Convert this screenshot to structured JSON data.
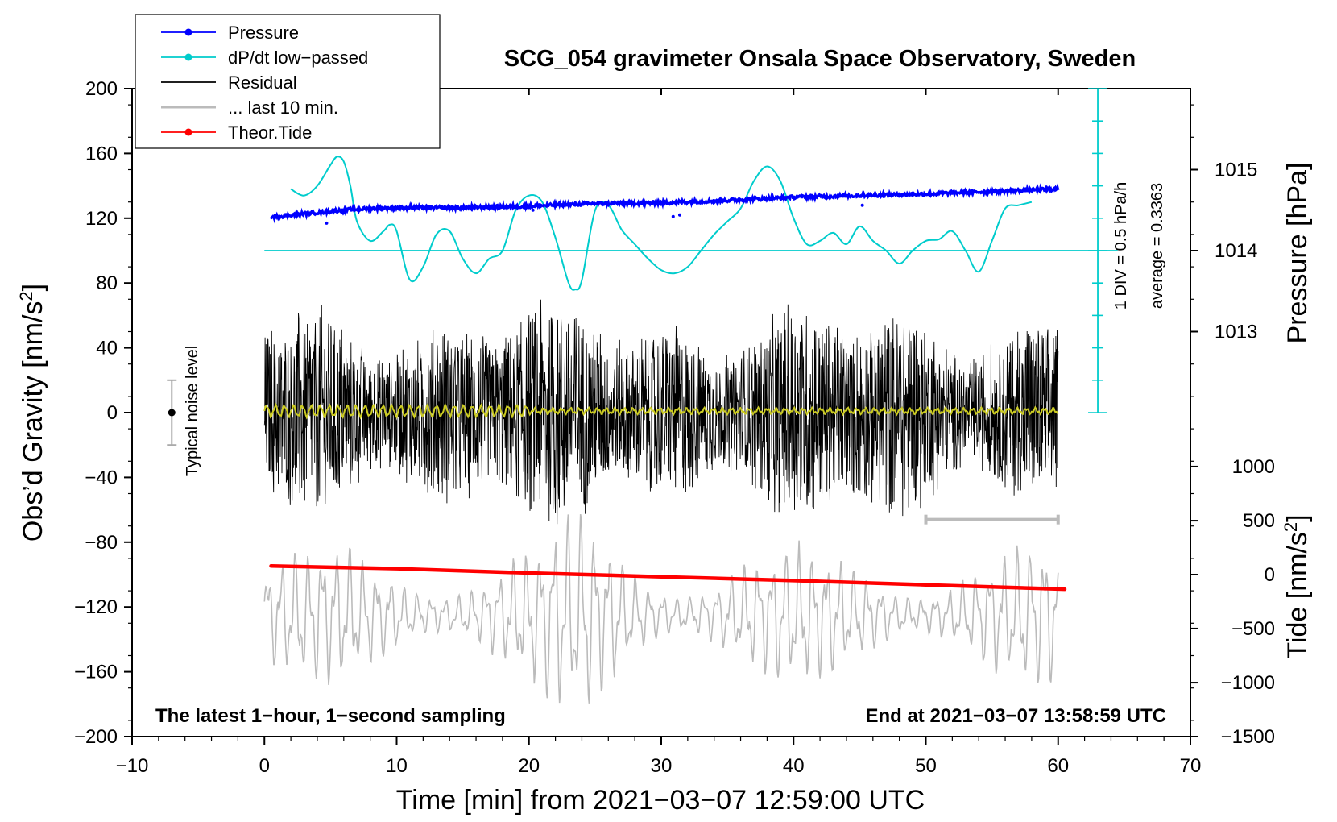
{
  "chart_data": {
    "type": "line",
    "title": "SCG_054 gravimeter Onsala Space Observatory, Sweden",
    "xlabel": "Time [min] from 2021−03−07 12:59:00 UTC",
    "ylabel_prefix": "Obs’d Gravity [nm/s",
    "ylabel_sup": "2",
    "ylabel_suffix": "]",
    "ylabel_right_pressure": "Pressure [hPa]",
    "ylabel_right_tide_prefix": "Tide [nm/s",
    "ylabel_right_tide_sup": "2",
    "ylabel_right_tide_suffix": "]",
    "xlim": [
      -10,
      70
    ],
    "ylim": [
      -200,
      200
    ],
    "x_ticks": [
      -10,
      0,
      10,
      20,
      30,
      40,
      50,
      60,
      70
    ],
    "x_tick_labels": [
      "−10",
      "0",
      "10",
      "20",
      "30",
      "40",
      "50",
      "60",
      "70"
    ],
    "y_ticks": [
      200,
      160,
      120,
      80,
      40,
      0,
      -40,
      -80,
      -120,
      -160,
      -200
    ],
    "y_tick_labels": [
      "200",
      "160",
      "120",
      "80",
      "40",
      "0",
      "−40",
      "−80",
      "−120",
      "−160",
      "−200"
    ],
    "pressure_axis": {
      "ticks": [
        1015,
        1014,
        1013
      ],
      "tick_labels": [
        "1015",
        "1014",
        "1013"
      ],
      "gravity_equiv": [
        150,
        100,
        50
      ]
    },
    "tide_axis": {
      "ticks": [
        1000,
        500,
        0,
        -500,
        -1000,
        -1500
      ],
      "tick_labels": [
        "1000",
        "500",
        "0",
        "−500",
        "−1000",
        "−1500"
      ],
      "gravity_equiv": [
        -33.3,
        -66.7,
        -100,
        -133.3,
        -166.7,
        -200
      ]
    },
    "legend": [
      {
        "label": "Pressure",
        "color": "#0000ff",
        "marker": true
      },
      {
        "label": "dP/dt low−passed",
        "color": "#00cccc",
        "marker": true
      },
      {
        "label": "Residual",
        "color": "#000000",
        "marker": false
      },
      {
        "label": "... last 10 min.",
        "color": "#bbbbbb",
        "marker": false
      },
      {
        "label": "Theor.Tide",
        "color": "#ff0000",
        "marker": true
      }
    ],
    "annotations": {
      "bottom_left": "The latest 1−hour, 1−second sampling",
      "bottom_right": "End at 2021−03−07 13:58:59 UTC",
      "noise_label": "Typical noise level",
      "dpdt_scale": "1 DIV = 0.5 hPa/h",
      "dpdt_average": "average = 0.3363"
    },
    "series": [
      {
        "name": "Pressure",
        "color": "#0000ff",
        "x": [
          0.5,
          2,
          4,
          6,
          8,
          10,
          15,
          20,
          25,
          30,
          35,
          40,
          45,
          50,
          55,
          60
        ],
        "gravity_scaled": [
          120.5,
          122,
          123.5,
          125,
          126,
          126.5,
          126.5,
          127.5,
          129,
          129.5,
          131,
          133,
          134,
          135,
          136.5,
          138
        ]
      },
      {
        "name": "dP/dt low-passed",
        "color": "#00cccc",
        "x": [
          2,
          3,
          4,
          5,
          5.5,
          6,
          6.5,
          7,
          8,
          9,
          9.5,
          10,
          11,
          12,
          13,
          14,
          15,
          16,
          17,
          18,
          19,
          20,
          21,
          22,
          23,
          23.5,
          24,
          25,
          26,
          27,
          28,
          29,
          30,
          31,
          32,
          33,
          34,
          35,
          36,
          37,
          38,
          39,
          40,
          41,
          42,
          43,
          44,
          45,
          46,
          47,
          48,
          49,
          50,
          51,
          52,
          53,
          54,
          55,
          56,
          57,
          58
        ],
        "gravity_scaled": [
          138,
          134,
          140,
          153,
          158,
          155,
          140,
          118,
          106,
          112,
          116,
          112,
          82,
          90,
          110,
          112,
          95,
          86,
          95,
          100,
          125,
          134,
          130,
          108,
          80,
          76,
          82,
          125,
          128,
          113,
          104,
          95,
          88,
          86,
          90,
          100,
          110,
          118,
          126,
          143,
          152,
          143,
          120,
          104,
          106,
          111,
          104,
          115,
          106,
          100,
          92,
          100,
          106,
          107,
          112,
          100,
          87,
          106,
          126,
          128,
          130
        ]
      },
      {
        "name": "Theor.Tide",
        "color": "#ff0000",
        "x": [
          0.5,
          10,
          20,
          30,
          40,
          50,
          60.5
        ],
        "values_nm_s2": [
          80,
          55,
          15,
          -20,
          -55,
          -95,
          -135
        ]
      }
    ],
    "noise_bar": {
      "x": -7,
      "center": 0,
      "range": [
        -20,
        20
      ]
    },
    "gray_scale_bar": {
      "x": [
        50,
        60
      ],
      "y": -66
    }
  }
}
